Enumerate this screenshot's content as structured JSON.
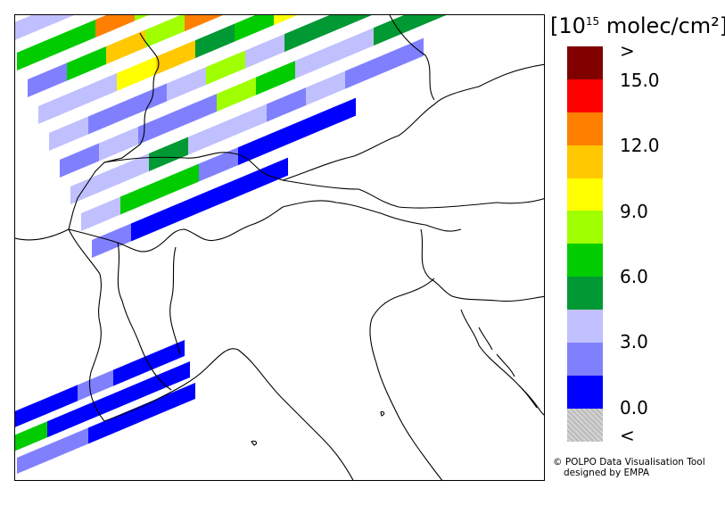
{
  "legend": {
    "unit_prefix": "[10",
    "unit_exponent": "15",
    "unit_suffix": " molec/cm²]",
    "colors": [
      "#800000",
      "#ff0000",
      "#ff8000",
      "#ffc800",
      "#ffff00",
      "#a0ff00",
      "#00cc00",
      "#009933",
      "#c0c0ff",
      "#8080ff",
      "#0000ff",
      "#c8c8c8"
    ],
    "labels": [
      ">",
      "15.0",
      "12.0",
      "9.0",
      "6.0",
      "3.0",
      "0.0",
      "<"
    ]
  },
  "credit": {
    "line1": "© POLPO Data Visualisation Tool",
    "line2": "designed by EMPA"
  }
}
